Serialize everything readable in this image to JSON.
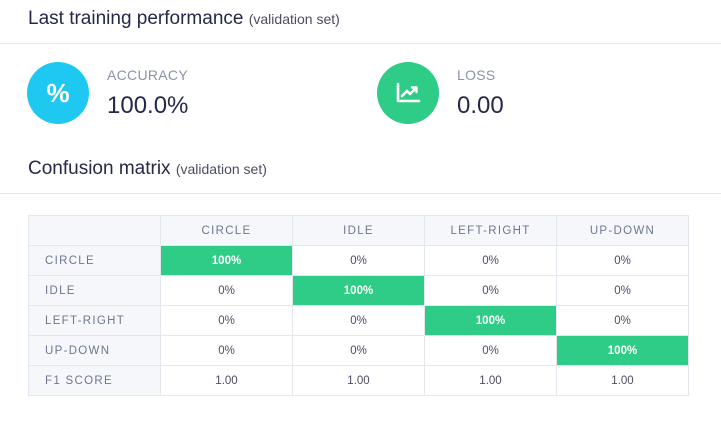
{
  "performance": {
    "title": "Last training performance",
    "subtitle": "(validation set)",
    "accuracy": {
      "label": "ACCURACY",
      "value": "100.0%",
      "icon": "percent-icon",
      "color": "#1ec8f0"
    },
    "loss": {
      "label": "LOSS",
      "value": "0.00",
      "icon": "chart-line-icon",
      "color": "#2ecc87"
    }
  },
  "confusion": {
    "title": "Confusion matrix",
    "subtitle": "(validation set)",
    "columns": [
      "CIRCLE",
      "IDLE",
      "LEFT-RIGHT",
      "UP-DOWN"
    ],
    "rows": [
      {
        "label": "CIRCLE",
        "cells": [
          "100%",
          "0%",
          "0%",
          "0%"
        ]
      },
      {
        "label": "IDLE",
        "cells": [
          "0%",
          "100%",
          "0%",
          "0%"
        ]
      },
      {
        "label": "LEFT-RIGHT",
        "cells": [
          "0%",
          "0%",
          "100%",
          "0%"
        ]
      },
      {
        "label": "UP-DOWN",
        "cells": [
          "0%",
          "0%",
          "0%",
          "100%"
        ]
      }
    ],
    "f1": {
      "label": "F1 SCORE",
      "cells": [
        "1.00",
        "1.00",
        "1.00",
        "1.00"
      ]
    },
    "highlight_color": "#2ecc87"
  }
}
